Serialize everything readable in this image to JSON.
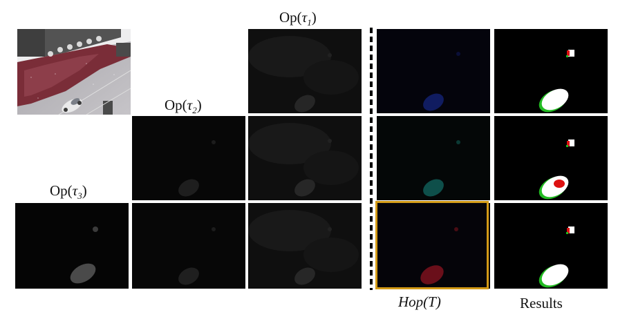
{
  "labels": {
    "op_tau1": "Op(τ1)",
    "op_tau2": "Op(τ2)",
    "op_tau3": "Op(τ3)",
    "hop": "Hop(T)",
    "results": "Results"
  },
  "colors": {
    "highlight_border": "#d39a16",
    "separator": "#000000",
    "tile_background": "#030303"
  }
}
